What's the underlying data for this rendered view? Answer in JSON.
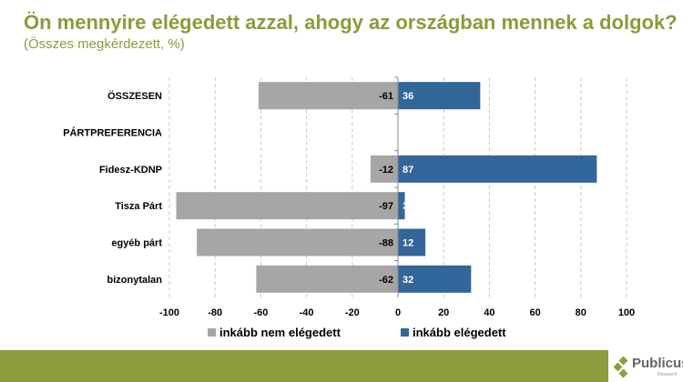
{
  "title": "Ön mennyire elégedett azzal, ahogy az országban mennek a dolgok?",
  "subtitle": "(Összes megkérdezett, %)",
  "logo": {
    "name": "Publicus",
    "sub": "Research"
  },
  "colors": {
    "title": "#8a9c3a",
    "negative": "#a6a6a6",
    "positive": "#336699",
    "footer": "#8c9d3c"
  },
  "chart_data": {
    "type": "bar",
    "orientation": "horizontal-diverging",
    "categories": [
      "ÖSSZESEN",
      "PÁRTPREFERENCIA",
      "Fidesz-KDNP",
      "Tisza Párt",
      "egyéb párt",
      "bizonytalan"
    ],
    "series": [
      {
        "name": "inkább nem elégedett",
        "values": [
          -61,
          null,
          -12,
          -97,
          -88,
          -62
        ],
        "color": "#a6a6a6"
      },
      {
        "name": "inkább elégedett",
        "values": [
          36,
          null,
          87,
          3,
          12,
          32
        ],
        "color": "#336699"
      }
    ],
    "xlim": [
      -100,
      100
    ],
    "xticks": [
      -100,
      -80,
      -60,
      -40,
      -20,
      0,
      20,
      40,
      60,
      80,
      100
    ],
    "grid": true,
    "legend": "bottom"
  }
}
